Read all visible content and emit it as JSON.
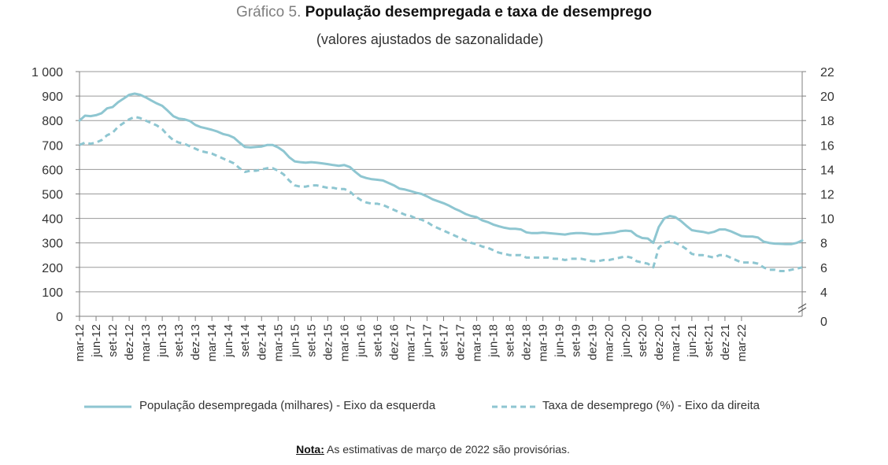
{
  "title": {
    "prefix": "Gráfico 5.",
    "main": "População desempregada e taxa de desemprego"
  },
  "subtitle": "(valores ajustados de sazonalidade)",
  "note": {
    "label": "Nota:",
    "text": " As estimativas de março de 2022 são provisórias."
  },
  "legend": {
    "solid_label": "População desempregada (milhares) - Eixo da esquerda",
    "dashed_label": "Taxa de desemprego (%) - Eixo da direita"
  },
  "colors": {
    "series": "#8ec6d1",
    "grid": "#9a9a9a",
    "axis": "#7f7f7f"
  },
  "chart_data": {
    "type": "line",
    "title": "População desempregada e taxa de desemprego",
    "subtitle": "(valores ajustados de sazonalidade)",
    "x_tick_labels": [
      "mar-12",
      "jun-12",
      "set-12",
      "dez-12",
      "mar-13",
      "jun-13",
      "set-13",
      "dez-13",
      "mar-14",
      "jun-14",
      "set-14",
      "dez-14",
      "mar-15",
      "jun-15",
      "set-15",
      "dez-15",
      "mar-16",
      "jun-16",
      "set-16",
      "dez-16",
      "mar-17",
      "jun-17",
      "set-17",
      "dez-17",
      "mar-18",
      "jun-18",
      "set-18",
      "dez-18",
      "mar-19",
      "jun-19",
      "set-19",
      "dez-19",
      "mar-20",
      "jun-20",
      "set-20",
      "dez-20",
      "mar-21",
      "jun-21",
      "set-21",
      "dez-21",
      "mar-22"
    ],
    "y_left": {
      "ticks": [
        "0",
        "100",
        "200",
        "300",
        "400",
        "500",
        "600",
        "700",
        "800",
        "900",
        "1 000"
      ],
      "range": [
        0,
        1000
      ]
    },
    "y_right": {
      "ticks": [
        "0",
        "4",
        "6",
        "8",
        "10",
        "12",
        "14",
        "16",
        "18",
        "20",
        "22"
      ],
      "range_broken": [
        2,
        22
      ]
    },
    "grid": true,
    "legend_position": "bottom",
    "series": [
      {
        "name": "População desempregada (milhares) - Eixo da esquerda",
        "axis": "left",
        "style": "solid",
        "values": [
          800,
          820,
          818,
          822,
          830,
          850,
          855,
          875,
          890,
          905,
          910,
          905,
          895,
          882,
          870,
          860,
          840,
          818,
          808,
          805,
          798,
          782,
          773,
          768,
          762,
          755,
          745,
          740,
          730,
          710,
          692,
          690,
          692,
          694,
          700,
          700,
          690,
          675,
          650,
          633,
          630,
          628,
          630,
          628,
          625,
          622,
          618,
          615,
          618,
          610,
          590,
          572,
          565,
          560,
          558,
          555,
          545,
          535,
          522,
          518,
          512,
          505,
          500,
          490,
          478,
          470,
          462,
          452,
          440,
          430,
          418,
          410,
          405,
          392,
          385,
          375,
          368,
          362,
          358,
          358,
          355,
          343,
          340,
          340,
          342,
          340,
          338,
          336,
          334,
          338,
          340,
          340,
          338,
          335,
          335,
          338,
          340,
          342,
          348,
          350,
          348,
          330,
          320,
          318,
          300,
          365,
          400,
          410,
          405,
          390,
          370,
          352,
          348,
          345,
          340,
          345,
          355,
          355,
          348,
          338,
          328,
          326,
          326,
          322,
          305,
          300,
          297,
          296,
          295,
          295,
          300,
          310
        ]
      },
      {
        "name": "Taxa de desemprego (%) - Eixo da direita",
        "axis": "right",
        "style": "dashed",
        "values": [
          16.0,
          16.2,
          16.1,
          16.2,
          16.4,
          16.8,
          17.0,
          17.5,
          17.8,
          18.1,
          18.3,
          18.2,
          18.0,
          17.8,
          17.6,
          17.3,
          16.8,
          16.4,
          16.2,
          16.1,
          15.9,
          15.7,
          15.5,
          15.4,
          15.3,
          15.1,
          14.9,
          14.7,
          14.5,
          14.1,
          13.8,
          13.9,
          13.9,
          14.0,
          14.1,
          14.1,
          13.9,
          13.6,
          13.1,
          12.7,
          12.6,
          12.6,
          12.7,
          12.7,
          12.6,
          12.5,
          12.5,
          12.4,
          12.4,
          12.2,
          11.8,
          11.5,
          11.3,
          11.2,
          11.2,
          11.1,
          10.9,
          10.7,
          10.5,
          10.3,
          10.2,
          10.0,
          9.9,
          9.7,
          9.4,
          9.2,
          9.0,
          8.8,
          8.6,
          8.4,
          8.2,
          8.0,
          7.9,
          7.7,
          7.6,
          7.4,
          7.2,
          7.1,
          7.0,
          7.0,
          7.0,
          6.8,
          6.8,
          6.8,
          6.8,
          6.8,
          6.7,
          6.7,
          6.6,
          6.7,
          6.7,
          6.7,
          6.6,
          6.5,
          6.5,
          6.6,
          6.6,
          6.7,
          6.8,
          6.9,
          6.8,
          6.5,
          6.4,
          6.3,
          6.0,
          7.6,
          8.0,
          8.1,
          8.0,
          7.8,
          7.5,
          7.1,
          7.0,
          7.0,
          6.9,
          6.8,
          7.0,
          7.0,
          6.8,
          6.6,
          6.4,
          6.4,
          6.4,
          6.3,
          6.0,
          5.8,
          5.8,
          5.7,
          5.7,
          5.8,
          5.9,
          6.0
        ]
      }
    ]
  }
}
